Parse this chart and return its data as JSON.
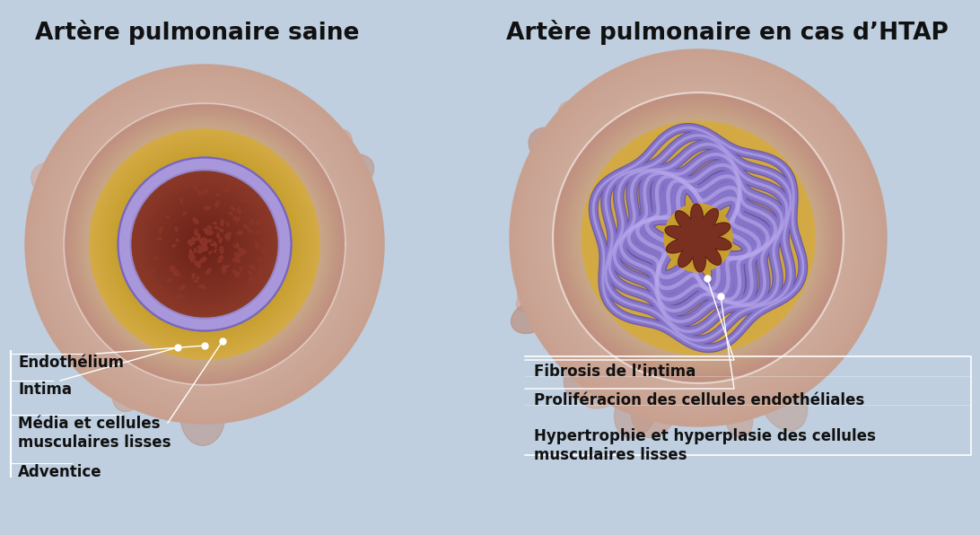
{
  "bg_color": "#bfcfe0",
  "title_left": "Artère pulmonaire saine",
  "title_right": "Artère pulmonaire en cas d’HTAP",
  "title_fontsize": 19,
  "title_fontweight": "bold",
  "labels_left": [
    "Endothélium",
    "Intima",
    "Média et cellules\nmusculaires lisses",
    "Adventice"
  ],
  "labels_right": [
    "Fibrosis de l’intima",
    "Proliféracion des cellules endothéliales",
    "Hypertrophie et hyperplasie des cellules\nmusculaires lisses"
  ],
  "label_fontsize": 12,
  "label_color": "#111111",
  "line_color": "#ffffff"
}
